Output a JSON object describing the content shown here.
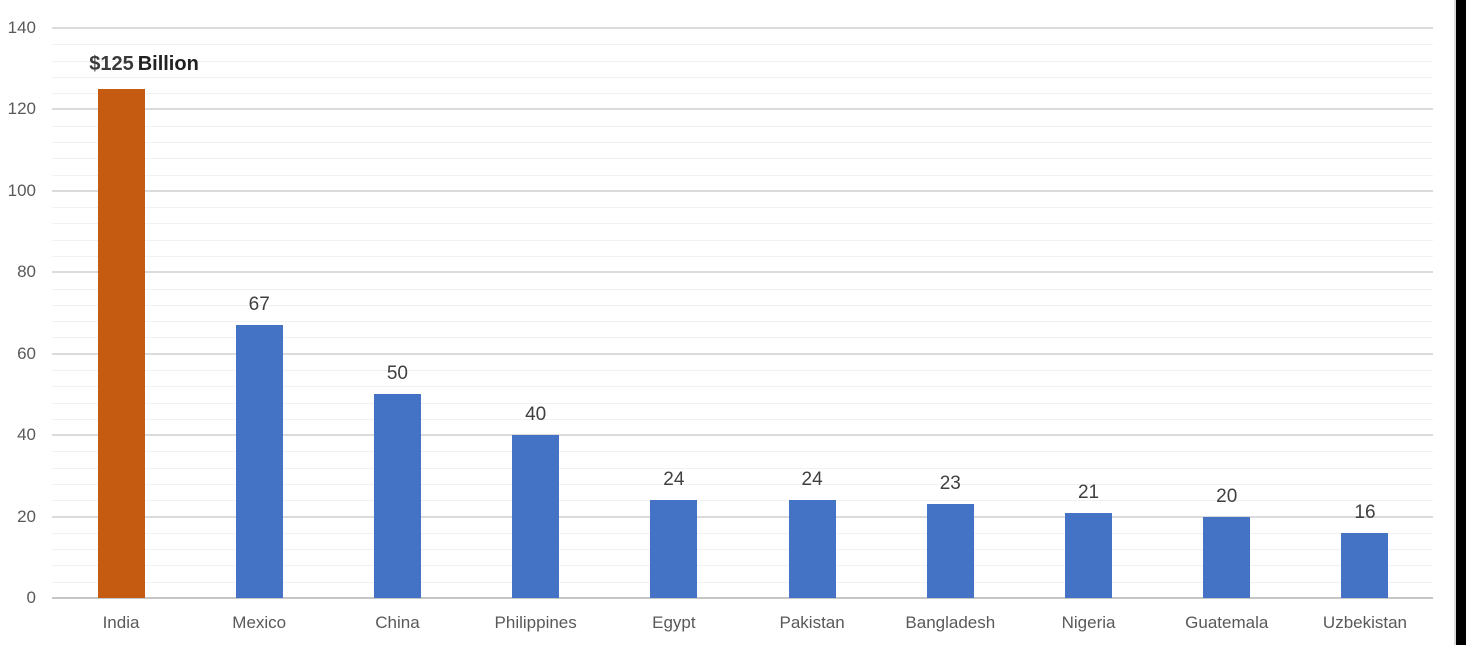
{
  "page": {
    "background": "#ffffff",
    "right_strip_color": "#000000"
  },
  "chart_data": {
    "type": "bar",
    "categories": [
      "India",
      "Mexico",
      "China",
      "Philippines",
      "Egypt",
      "Pakistan",
      "Bangladesh",
      "Nigeria",
      "Guatemala",
      "Uzbekistan"
    ],
    "values": [
      125,
      67,
      50,
      40,
      24,
      24,
      23,
      21,
      20,
      16
    ],
    "data_labels": [
      "$125 Billion",
      "67",
      "50",
      "40",
      "24",
      "24",
      "23",
      "21",
      "20",
      "16"
    ],
    "highlight_index": 0,
    "highlight_label": {
      "value_text": "$125",
      "unit_text": "Billion"
    },
    "bar_color_default": "#4472C4",
    "bar_color_highlight": "#C55A11",
    "y_axis": {
      "min": 0,
      "max": 140,
      "major_unit": 20,
      "minor_unit": 4,
      "tick_labels": [
        "0",
        "20",
        "40",
        "60",
        "80",
        "100",
        "120",
        "140"
      ]
    },
    "ylim": [
      0,
      140
    ],
    "xlabel": "",
    "ylabel": "",
    "legend": "none",
    "grid": {
      "major": true,
      "minor": true
    },
    "colors": {
      "axis_text": "#595959",
      "data_label": "#404040",
      "gridline_major": "#dbdbdb",
      "gridline_minor": "#f1f1f1",
      "axis_line": "#c6c6c6"
    }
  }
}
